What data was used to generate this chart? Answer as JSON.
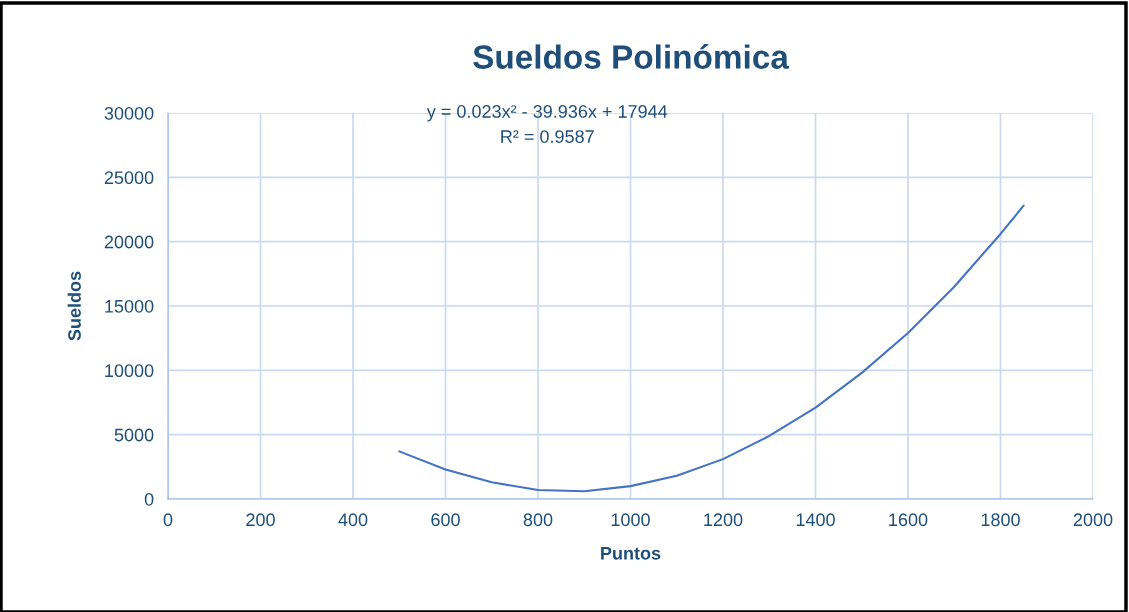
{
  "chart_data": {
    "type": "line",
    "title": "Sueldos Polinómica",
    "xlabel": "Puntos",
    "ylabel": "Sueldos",
    "x": [
      500,
      600,
      700,
      800,
      900,
      1000,
      1100,
      1200,
      1300,
      1400,
      1500,
      1600,
      1700,
      1800,
      1850
    ],
    "series": [
      {
        "color": "#4472c4",
        "values": [
          3700,
          2300,
          1300,
          700,
          600,
          1000,
          1800,
          3100,
          4900,
          7100,
          9800,
          12900,
          16500,
          20600,
          22800
        ]
      }
    ],
    "xlim": [
      0,
      2000
    ],
    "xticks": [
      0,
      200,
      400,
      600,
      800,
      1000,
      1200,
      1400,
      1600,
      1800,
      2000
    ],
    "ylim": [
      0,
      30000
    ],
    "yticks": [
      0,
      5000,
      10000,
      15000,
      20000,
      25000,
      30000
    ],
    "grid": true,
    "marker": "none",
    "line_style": "solid",
    "annotations": [
      "y = 0.023x² - 39.936x + 17944",
      "R² = 0.9587"
    ]
  }
}
